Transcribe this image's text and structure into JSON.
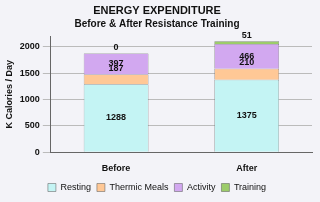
{
  "chart_data": {
    "type": "bar",
    "title": "ENERGY EXPENDITURE",
    "subtitle": "Before & After Resistance Training",
    "y_label": "K Calories / Day",
    "categories": [
      "Before",
      "After"
    ],
    "series": [
      {
        "name": "Resting",
        "color": "#c4f4f4",
        "values": [
          1288,
          1375
        ]
      },
      {
        "name": "Thermic Meals",
        "color": "#ffc896",
        "values": [
          187,
          210
        ]
      },
      {
        "name": "Activity",
        "color": "#d2a8f0",
        "values": [
          397,
          466
        ]
      },
      {
        "name": "Training",
        "color": "#9ccc6a",
        "values": [
          0,
          51
        ]
      }
    ],
    "stacked": true,
    "data_labels": true,
    "legend": "bottom",
    "grid": true,
    "ylim": [
      0,
      2200
    ],
    "yticks": [
      0,
      500,
      1000,
      1500,
      2000
    ]
  }
}
